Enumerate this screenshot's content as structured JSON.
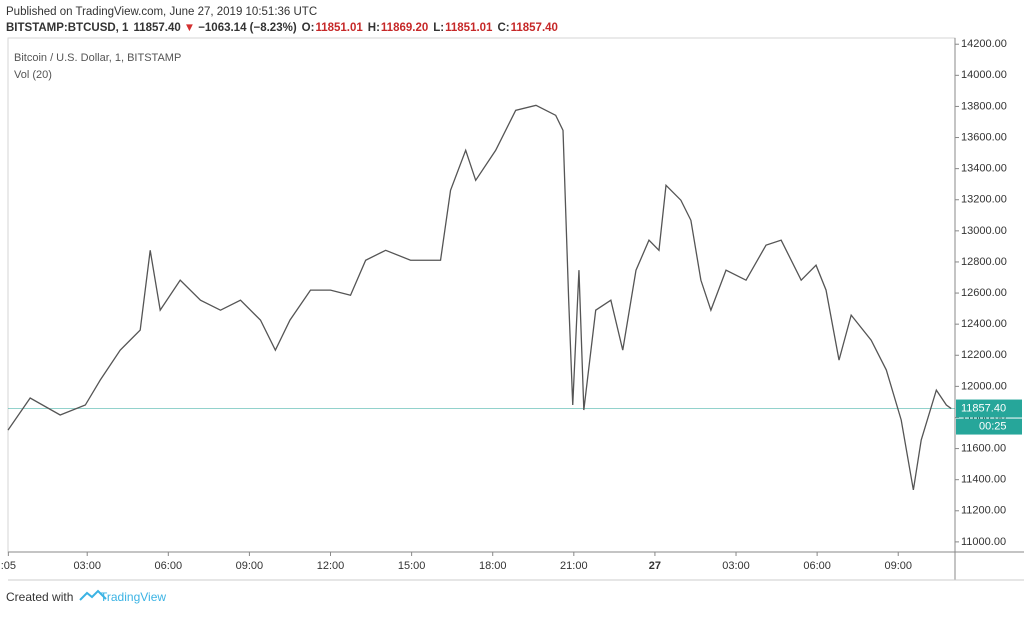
{
  "chart_data": {
    "type": "line",
    "title": "Published on TradingView.com, June 27, 2019 10:51:36 UTC",
    "symbol": "BITSTAMP:BTCUSD, 1",
    "last": "11857.40",
    "arrow": "▼",
    "change": "−1063.14 (−8.23%)",
    "ohlc": [
      {
        "key": "O:",
        "val": "11851.01"
      },
      {
        "key": "H:",
        "val": "11869.20"
      },
      {
        "key": "L:",
        "val": "11851.01"
      },
      {
        "key": "C:",
        "val": "11857.40"
      }
    ],
    "indicator": "Vol (20)",
    "x": [
      0.07,
      0.89,
      2.0,
      2.93,
      3.48,
      4.22,
      4.96,
      5.33,
      5.7,
      6.44,
      7.19,
      7.93,
      8.67,
      9.41,
      9.96,
      10.5,
      11.26,
      12.0,
      12.74,
      13.3,
      14.04,
      14.96,
      16.07,
      16.44,
      17.0,
      17.37,
      18.11,
      18.85,
      19.6,
      20.33,
      20.6,
      20.81,
      20.96,
      21.19,
      21.37,
      21.81,
      22.37,
      22.81,
      23.3,
      23.78,
      24.15,
      24.41,
      24.96,
      25.33,
      25.7,
      26.07,
      26.63,
      27.37,
      28.11,
      28.67,
      29.41,
      29.96,
      30.33,
      30.81,
      31.26,
      32.0,
      32.56,
      33.11,
      33.56,
      33.85,
      34.41,
      34.78,
      34.96
    ],
    "series": [
      {
        "name": "Bitcoin / U.S. Dollar, 1, BITSTAMP",
        "color": "#555555",
        "values": [
          11719,
          11925,
          11816,
          11880,
          12040,
          12233,
          12362,
          12875,
          12490,
          12683,
          12554,
          12490,
          12554,
          12426,
          12233,
          12426,
          12619,
          12619,
          12586,
          12811,
          12875,
          12811,
          12811,
          13261,
          13518,
          13325,
          13518,
          13775,
          13807,
          13743,
          13646,
          12554,
          11880,
          12747,
          11848,
          12490,
          12554,
          12233,
          12747,
          12940,
          12875,
          13293,
          13197,
          13068,
          12683,
          12490,
          12747,
          12683,
          12908,
          12940,
          12683,
          12779,
          12619,
          12169,
          12458,
          12297,
          12105,
          11784,
          11334,
          11655,
          11976,
          11880,
          11857.4
        ]
      }
    ],
    "last_price": {
      "value": 11857.4,
      "label": "11857.40"
    },
    "countdown": "00:25",
    "last_color": "#26a69a",
    "xlim": [
      0.07,
      35.1
    ],
    "xticks": [
      {
        "value": 0.083,
        "label": ":05"
      },
      {
        "value": 3,
        "label": "03:00"
      },
      {
        "value": 6,
        "label": "06:00"
      },
      {
        "value": 9,
        "label": "09:00"
      },
      {
        "value": 12,
        "label": "12:00"
      },
      {
        "value": 15,
        "label": "15:00"
      },
      {
        "value": 18,
        "label": "18:00"
      },
      {
        "value": 21,
        "label": "21:00"
      },
      {
        "value": 24,
        "label": "27"
      },
      {
        "value": 27,
        "label": "03:00"
      },
      {
        "value": 30,
        "label": "06:00"
      },
      {
        "value": 33,
        "label": "09:00"
      }
    ],
    "ylim": [
      10935,
      14240
    ],
    "yticks": [
      {
        "value": 11000,
        "label": "11000.00"
      },
      {
        "value": 11200,
        "label": "11200.00"
      },
      {
        "value": 11400,
        "label": "11400.00"
      },
      {
        "value": 11600,
        "label": "11600.00"
      },
      {
        "value": 11800,
        "label": "11800.00"
      },
      {
        "value": 12000,
        "label": "12000.00"
      },
      {
        "value": 12200,
        "label": "12200.00"
      },
      {
        "value": 12400,
        "label": "12400.00"
      },
      {
        "value": 12600,
        "label": "12600.00"
      },
      {
        "value": 12800,
        "label": "12800.00"
      },
      {
        "value": 13000,
        "label": "13000.00"
      },
      {
        "value": 13200,
        "label": "13200.00"
      },
      {
        "value": 13400,
        "label": "13400.00"
      },
      {
        "value": 13600,
        "label": "13600.00"
      },
      {
        "value": 13800,
        "label": "13800.00"
      },
      {
        "value": 14000,
        "label": "14000.00"
      },
      {
        "value": 14200,
        "label": "14200.00"
      }
    ],
    "grid": false,
    "footer": "Created with",
    "brand": "TradingView"
  }
}
